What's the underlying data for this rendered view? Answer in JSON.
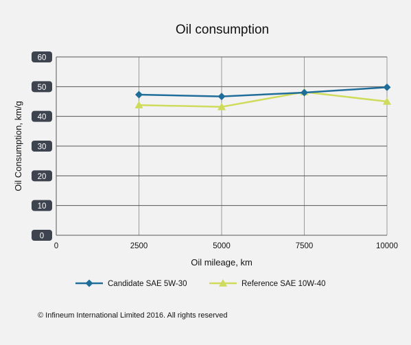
{
  "chart_data": {
    "type": "line",
    "title": "Oil consumption",
    "xlabel": "Oil mileage, km",
    "ylabel": "Oil Consumption, km/g",
    "x": [
      0,
      2500,
      5000,
      7500,
      10000
    ],
    "x_tick_labels": [
      "0",
      "2500",
      "5000",
      "7500",
      "10000"
    ],
    "xlim": [
      0,
      10000
    ],
    "ylim": [
      0,
      60
    ],
    "y_ticks": [
      0,
      10,
      20,
      30,
      40,
      50,
      60
    ],
    "grid": true,
    "legend_position": "bottom",
    "series": [
      {
        "name": "Candidate SAE 5W-30",
        "color": "#1f6e9a",
        "marker": "diamond",
        "x": [
          2500,
          5000,
          7500,
          10000
        ],
        "values": [
          47.3,
          46.7,
          48.0,
          49.8
        ]
      },
      {
        "name": "Reference SAE 10W-40",
        "color": "#cfdb5a",
        "marker": "triangle",
        "x": [
          2500,
          5000,
          7500,
          10000
        ],
        "values": [
          43.8,
          43.2,
          48.2,
          45.0
        ]
      }
    ]
  },
  "footer": {
    "copyright": "© Infineum International Limited 2016. All rights reserved"
  }
}
